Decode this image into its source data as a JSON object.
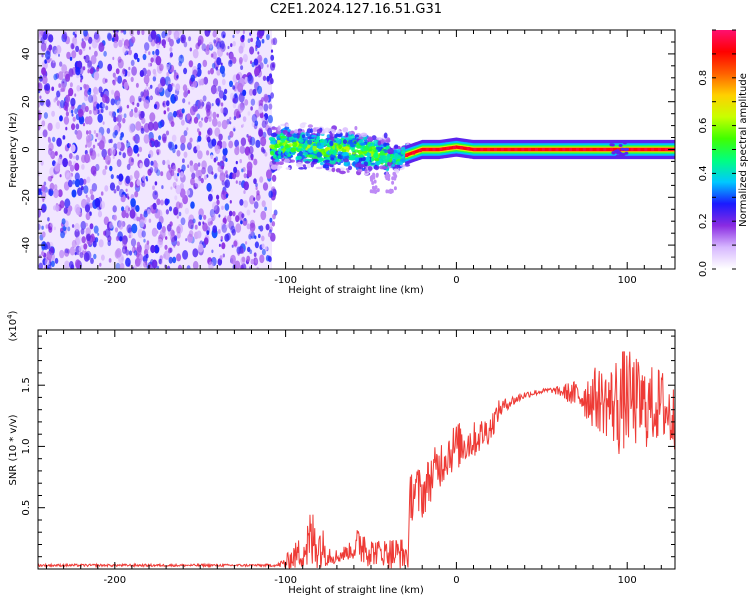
{
  "title": "C2E1.2024.127.16.51.G31",
  "colors": {
    "spectrogram_low": "#e9d9ff",
    "spectrogram_mid": "#7a1cff",
    "line_color": "#ee3b36",
    "axis_color": "#000000"
  },
  "chart_data": [
    {
      "type": "heatmap",
      "xlabel": "Height of straight line (km)",
      "ylabel": "Frequency (Hz)",
      "xlim": [
        -245,
        128
      ],
      "ylim": [
        -50,
        50
      ],
      "xticks": [
        -200,
        -100,
        0,
        100
      ],
      "xtick_labels": [
        "-200",
        "-100",
        "0",
        "100"
      ],
      "yticks": [
        -40,
        -20,
        0,
        20,
        40
      ],
      "ytick_labels": [
        "-40",
        "-20",
        "0",
        "20",
        "40"
      ],
      "grid": false,
      "noise_region_x": [
        -245,
        -108
      ],
      "signal_ridge": [
        {
          "x": -105,
          "y": 2
        },
        {
          "x": -90,
          "y": 1
        },
        {
          "x": -75,
          "y": 0
        },
        {
          "x": -60,
          "y": 0
        },
        {
          "x": -45,
          "y": -2
        },
        {
          "x": -36,
          "y": -4
        },
        {
          "x": -28,
          "y": -2
        },
        {
          "x": -20,
          "y": 0
        },
        {
          "x": -10,
          "y": 0
        },
        {
          "x": 0,
          "y": 1
        },
        {
          "x": 10,
          "y": 0
        },
        {
          "x": 50,
          "y": 0
        },
        {
          "x": 100,
          "y": 0
        },
        {
          "x": 128,
          "y": 0
        }
      ],
      "colorbar": {
        "label": "Normalized spectral amplitude",
        "range": [
          0,
          1
        ],
        "ticks": [
          0.0,
          0.2,
          0.4,
          0.6,
          0.8
        ],
        "tick_labels": [
          "0.0",
          "0.2",
          "0.4",
          "0.6",
          "0.8"
        ],
        "colors": [
          "#ffffff",
          "#d7b8ff",
          "#8a2be2",
          "#1a1aff",
          "#00c8ff",
          "#00ff80",
          "#40ff00",
          "#c8ff00",
          "#ffd000",
          "#ff6000",
          "#ff0000",
          "#ff1070"
        ]
      }
    },
    {
      "type": "line",
      "xlabel": "Height of straight line (km)",
      "ylabel": "SNR (10 * v/v)",
      "multiplier_label": "(x10",
      "multiplier_exp": "4",
      "multiplier_close": ")",
      "xlim": [
        -245,
        128
      ],
      "ylim": [
        0.0,
        1.95
      ],
      "xticks": [
        -200,
        -100,
        0,
        100
      ],
      "xtick_labels": [
        "-200",
        "-100",
        "0",
        "100"
      ],
      "yticks": [
        0.5,
        1.0,
        1.5
      ],
      "ytick_labels": [
        "0.5",
        "1.0",
        "1.5"
      ],
      "grid": false,
      "series": [
        {
          "envelope_x": [
            -245,
            -105,
            -100,
            -90,
            -85,
            -80,
            -75,
            -70,
            -62,
            -55,
            -50,
            -45,
            -35,
            -28,
            -27,
            -25,
            -20,
            -15,
            -10,
            -5,
            0,
            10,
            20,
            25,
            30,
            40,
            50,
            55,
            60,
            65,
            70,
            80,
            90,
            95,
            100,
            110,
            120,
            128
          ],
          "envelope_mid": [
            0.03,
            0.03,
            0.05,
            0.15,
            0.22,
            0.2,
            0.13,
            0.1,
            0.15,
            0.22,
            0.14,
            0.14,
            0.12,
            0.12,
            0.6,
            0.65,
            0.6,
            0.75,
            0.85,
            0.95,
            1.0,
            1.05,
            1.15,
            1.3,
            1.35,
            1.42,
            1.45,
            1.46,
            1.45,
            1.44,
            1.42,
            1.4,
            1.35,
            1.35,
            1.4,
            1.32,
            1.35,
            1.2
          ],
          "envelope_amp": [
            0.01,
            0.01,
            0.06,
            0.15,
            0.3,
            0.2,
            0.1,
            0.06,
            0.07,
            0.2,
            0.12,
            0.1,
            0.15,
            0.12,
            0.22,
            0.25,
            0.2,
            0.2,
            0.2,
            0.2,
            0.2,
            0.15,
            0.12,
            0.08,
            0.05,
            0.03,
            0.02,
            0.02,
            0.04,
            0.08,
            0.12,
            0.25,
            0.3,
            0.45,
            0.4,
            0.35,
            0.3,
            0.3
          ]
        }
      ]
    }
  ]
}
